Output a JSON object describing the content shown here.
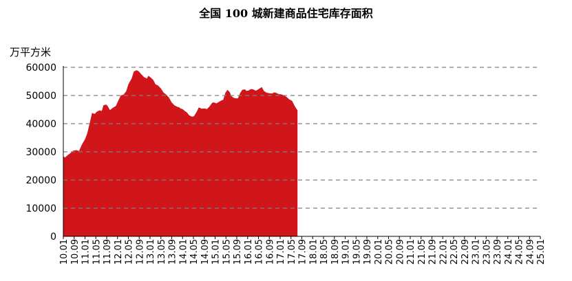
{
  "chart_data": {
    "type": "area",
    "title": "全国 100 城新建商品住宅库存面积",
    "ylabel": "万平方米",
    "ylim": [
      0,
      60000
    ],
    "yticks": [
      0,
      10000,
      20000,
      30000,
      40000,
      50000,
      60000
    ],
    "xticks": [
      "10.01",
      "10.09",
      "11.01",
      "11.05",
      "11.09",
      "12.01",
      "12.05",
      "12.09",
      "13.01",
      "13.05",
      "13.09",
      "14.01",
      "14.05",
      "14.09",
      "15.01",
      "15.05",
      "15.09",
      "16.01",
      "16.05",
      "16.09",
      "17.01",
      "17.05",
      "17.09",
      "18.01",
      "18.05",
      "18.09",
      "19.01",
      "19.05",
      "19.09",
      "20.01",
      "20.05",
      "20.09",
      "21.01",
      "21.05",
      "21.09",
      "22.01",
      "22.05",
      "22.09",
      "23.01",
      "23.05",
      "23.09",
      "24.01",
      "24.05",
      "24.09",
      "25.01"
    ],
    "grid": "horizontal-dashed",
    "colors": {
      "area": "#d0161b",
      "grid": "#7f7f7f",
      "axis": "#000000"
    },
    "series": [
      {
        "values": [
          [
            0,
            28500
          ],
          [
            0.15,
            28000
          ],
          [
            0.4,
            28800
          ],
          [
            0.7,
            29700
          ],
          [
            0.9,
            30400
          ],
          [
            1.2,
            30600
          ],
          [
            1.45,
            30300
          ],
          [
            1.7,
            32500
          ],
          [
            2.0,
            34500
          ],
          [
            2.2,
            36500
          ],
          [
            2.45,
            40500
          ],
          [
            2.65,
            43800
          ],
          [
            2.9,
            43500
          ],
          [
            3.1,
            44300
          ],
          [
            3.35,
            44700
          ],
          [
            3.55,
            44500
          ],
          [
            3.7,
            46500
          ],
          [
            3.95,
            46800
          ],
          [
            4.1,
            46200
          ],
          [
            4.3,
            44800
          ],
          [
            4.55,
            45600
          ],
          [
            4.85,
            46300
          ],
          [
            5.05,
            48000
          ],
          [
            5.3,
            50000
          ],
          [
            5.55,
            50300
          ],
          [
            5.8,
            51500
          ],
          [
            6.0,
            54000
          ],
          [
            6.3,
            56000
          ],
          [
            6.5,
            58500
          ],
          [
            6.75,
            59000
          ],
          [
            6.95,
            58600
          ],
          [
            7.2,
            57500
          ],
          [
            7.45,
            56500
          ],
          [
            7.7,
            56000
          ],
          [
            7.85,
            57000
          ],
          [
            8.05,
            56400
          ],
          [
            8.3,
            55500
          ],
          [
            8.5,
            54000
          ],
          [
            8.75,
            53500
          ],
          [
            9.0,
            52500
          ],
          [
            9.25,
            51000
          ],
          [
            9.5,
            50300
          ],
          [
            9.75,
            49200
          ],
          [
            10.0,
            47500
          ],
          [
            10.25,
            46500
          ],
          [
            10.5,
            46000
          ],
          [
            10.7,
            45800
          ],
          [
            10.8,
            45400
          ],
          [
            11.0,
            45200
          ],
          [
            11.2,
            44500
          ],
          [
            11.4,
            44000
          ],
          [
            11.6,
            43000
          ],
          [
            11.85,
            42500
          ],
          [
            12.05,
            42600
          ],
          [
            12.3,
            44200
          ],
          [
            12.5,
            45800
          ],
          [
            12.75,
            45300
          ],
          [
            13.0,
            45400
          ],
          [
            13.25,
            45200
          ],
          [
            13.5,
            46200
          ],
          [
            13.75,
            47500
          ],
          [
            13.95,
            47500
          ],
          [
            14.1,
            47200
          ],
          [
            14.3,
            47600
          ],
          [
            14.55,
            48200
          ],
          [
            14.75,
            48500
          ],
          [
            14.95,
            51000
          ],
          [
            15.15,
            52000
          ],
          [
            15.35,
            51200
          ],
          [
            15.5,
            49800
          ],
          [
            15.7,
            49200
          ],
          [
            15.9,
            49000
          ],
          [
            16.1,
            49000
          ],
          [
            16.3,
            50800
          ],
          [
            16.5,
            52000
          ],
          [
            16.75,
            52200
          ],
          [
            16.9,
            51600
          ],
          [
            17.1,
            51800
          ],
          [
            17.3,
            52300
          ],
          [
            17.5,
            52200
          ],
          [
            17.75,
            51700
          ],
          [
            17.95,
            52100
          ],
          [
            18.15,
            52600
          ],
          [
            18.3,
            53000
          ],
          [
            18.5,
            51600
          ],
          [
            18.75,
            51000
          ],
          [
            19.0,
            50800
          ],
          [
            19.25,
            50700
          ],
          [
            19.45,
            51100
          ],
          [
            19.65,
            50900
          ],
          [
            19.85,
            50500
          ],
          [
            20.1,
            50400
          ],
          [
            20.35,
            50100
          ],
          [
            20.6,
            49500
          ],
          [
            20.85,
            48600
          ],
          [
            21.1,
            48100
          ],
          [
            21.35,
            46200
          ],
          [
            21.55,
            45000
          ],
          [
            21.6,
            44800
          ]
        ]
      }
    ]
  }
}
